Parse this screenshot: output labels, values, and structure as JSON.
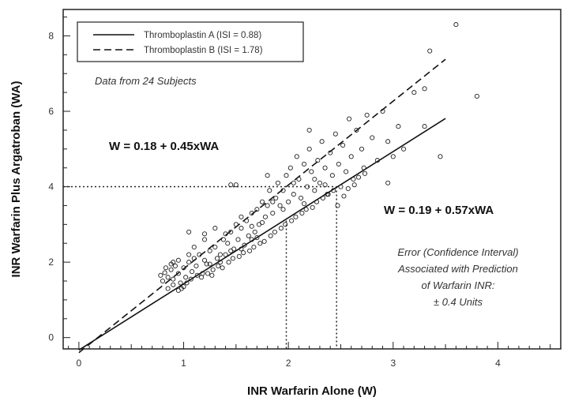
{
  "chart_data": {
    "type": "scatter",
    "xlabel": "INR Warfarin Alone (W)",
    "ylabel": "INR Warfarin Plus Argatroban (WA)",
    "xlim": [
      -0.15,
      4.6
    ],
    "ylim": [
      -0.3,
      8.7
    ],
    "xticks": [
      "0",
      "1",
      "2",
      "3",
      "4"
    ],
    "yticks": [
      "0",
      "2",
      "4",
      "6",
      "8"
    ],
    "legend": {
      "placement": "top-left",
      "entries": [
        {
          "label": "Thromboplastin A (ISI = 0.88)",
          "style": "solid"
        },
        {
          "label": "Thromboplastin B (ISI = 1.78)",
          "style": "dashed"
        }
      ]
    },
    "annotations": {
      "subjects": "Data from 24 Subjects",
      "eq_b": "W = 0.18 + 0.45xWA",
      "eq_a": "W = 0.19 + 0.57xWA",
      "error_lines": [
        "Error (Confidence Interval)",
        "Associated with Prediction",
        "of Warfarin INR:",
        "± 0.4 Units"
      ]
    },
    "series": [
      {
        "name": "Thromboplastin A (ISI = 0.88)",
        "style": "solid",
        "x": [
          0.0,
          3.5
        ],
        "y": [
          -0.33,
          5.81
        ]
      },
      {
        "name": "Thromboplastin B (ISI = 1.78)",
        "style": "dashed",
        "x": [
          0.0,
          3.5
        ],
        "y": [
          -0.4,
          7.38
        ]
      }
    ],
    "reference_lines": {
      "y": 4,
      "x": [
        1.98,
        2.46
      ]
    },
    "points": [
      [
        0.78,
        1.65
      ],
      [
        0.8,
        1.5
      ],
      [
        0.82,
        1.72
      ],
      [
        0.85,
        1.6
      ],
      [
        0.88,
        1.8
      ],
      [
        0.9,
        1.55
      ],
      [
        0.92,
        1.9
      ],
      [
        0.95,
        1.7
      ],
      [
        0.97,
        1.45
      ],
      [
        1.0,
        1.85
      ],
      [
        1.02,
        1.6
      ],
      [
        1.05,
        2.0
      ],
      [
        1.08,
        1.75
      ],
      [
        1.1,
        2.1
      ],
      [
        1.12,
        1.9
      ],
      [
        1.15,
        2.2
      ],
      [
        1.18,
        1.7
      ],
      [
        1.2,
        2.05
      ],
      [
        1.22,
        1.95
      ],
      [
        1.25,
        2.3
      ],
      [
        1.28,
        1.8
      ],
      [
        1.3,
        2.4
      ],
      [
        1.32,
        2.1
      ],
      [
        1.35,
        2.0
      ],
      [
        1.38,
        2.6
      ],
      [
        1.4,
        2.2
      ],
      [
        1.42,
        2.5
      ],
      [
        1.45,
        2.8
      ],
      [
        1.48,
        2.35
      ],
      [
        1.5,
        3.0
      ],
      [
        1.52,
        2.6
      ],
      [
        1.55,
        2.9
      ],
      [
        1.58,
        2.45
      ],
      [
        1.6,
        3.1
      ],
      [
        1.62,
        2.7
      ],
      [
        1.65,
        3.3
      ],
      [
        1.68,
        2.8
      ],
      [
        1.7,
        3.4
      ],
      [
        1.72,
        3.0
      ],
      [
        1.75,
        3.6
      ],
      [
        1.78,
        3.2
      ],
      [
        1.8,
        3.5
      ],
      [
        1.82,
        3.9
      ],
      [
        1.85,
        3.3
      ],
      [
        1.88,
        3.7
      ],
      [
        1.9,
        4.1
      ],
      [
        1.92,
        3.5
      ],
      [
        1.95,
        3.9
      ],
      [
        1.98,
        4.3
      ],
      [
        2.0,
        3.6
      ],
      [
        2.02,
        4.5
      ],
      [
        2.05,
        3.8
      ],
      [
        2.08,
        4.8
      ],
      [
        2.1,
        4.2
      ],
      [
        2.12,
        3.7
      ],
      [
        2.15,
        4.6
      ],
      [
        2.18,
        4.0
      ],
      [
        2.2,
        5.0
      ],
      [
        2.22,
        4.4
      ],
      [
        2.25,
        3.9
      ],
      [
        2.28,
        4.7
      ],
      [
        2.3,
        4.1
      ],
      [
        2.32,
        5.2
      ],
      [
        2.35,
        4.5
      ],
      [
        2.38,
        3.8
      ],
      [
        2.4,
        4.9
      ],
      [
        2.42,
        4.3
      ],
      [
        2.45,
        5.4
      ],
      [
        2.48,
        4.6
      ],
      [
        2.5,
        4.0
      ],
      [
        2.52,
        5.1
      ],
      [
        2.55,
        4.4
      ],
      [
        2.58,
        5.8
      ],
      [
        2.6,
        4.8
      ],
      [
        2.62,
        4.2
      ],
      [
        2.65,
        5.5
      ],
      [
        2.7,
        5.0
      ],
      [
        2.72,
        4.5
      ],
      [
        2.75,
        5.9
      ],
      [
        2.8,
        5.3
      ],
      [
        2.85,
        4.7
      ],
      [
        2.9,
        6.0
      ],
      [
        2.95,
        5.2
      ],
      [
        3.0,
        4.8
      ],
      [
        3.05,
        5.6
      ],
      [
        3.1,
        5.0
      ],
      [
        3.2,
        6.5
      ],
      [
        3.3,
        5.6
      ],
      [
        3.35,
        7.6
      ],
      [
        3.45,
        4.8
      ],
      [
        3.6,
        8.3
      ],
      [
        3.8,
        6.4
      ],
      [
        3.3,
        6.6
      ],
      [
        2.95,
        4.1
      ],
      [
        2.2,
        5.5
      ],
      [
        1.45,
        4.05
      ],
      [
        1.5,
        4.05
      ],
      [
        1.8,
        4.3
      ],
      [
        0.98,
        1.3
      ],
      [
        1.0,
        1.35
      ],
      [
        0.9,
        1.4
      ],
      [
        0.85,
        1.3
      ],
      [
        0.95,
        1.25
      ],
      [
        1.03,
        1.45
      ],
      [
        1.07,
        1.55
      ],
      [
        1.13,
        1.65
      ],
      [
        1.17,
        1.6
      ],
      [
        1.23,
        1.7
      ],
      [
        1.27,
        1.65
      ],
      [
        1.33,
        1.9
      ],
      [
        1.37,
        1.85
      ],
      [
        1.43,
        2.0
      ],
      [
        1.47,
        2.1
      ],
      [
        1.53,
        2.15
      ],
      [
        1.57,
        2.25
      ],
      [
        1.63,
        2.3
      ],
      [
        1.67,
        2.4
      ],
      [
        1.73,
        2.5
      ],
      [
        1.77,
        2.55
      ],
      [
        1.83,
        2.7
      ],
      [
        1.87,
        2.8
      ],
      [
        1.93,
        2.9
      ],
      [
        1.97,
        3.0
      ],
      [
        2.03,
        3.1
      ],
      [
        2.07,
        3.2
      ],
      [
        2.13,
        3.3
      ],
      [
        2.17,
        3.4
      ],
      [
        2.23,
        3.45
      ],
      [
        2.27,
        3.6
      ],
      [
        2.33,
        3.7
      ],
      [
        2.37,
        3.8
      ],
      [
        2.43,
        3.9
      ],
      [
        2.47,
        3.5
      ],
      [
        2.53,
        3.75
      ],
      [
        2.57,
        3.95
      ],
      [
        2.63,
        4.05
      ],
      [
        2.67,
        4.25
      ],
      [
        2.73,
        4.35
      ],
      [
        1.2,
        2.6
      ],
      [
        1.3,
        2.9
      ],
      [
        1.4,
        2.75
      ],
      [
        1.55,
        3.2
      ],
      [
        1.65,
        2.95
      ],
      [
        1.75,
        3.05
      ],
      [
        1.85,
        3.6
      ],
      [
        1.95,
        3.4
      ],
      [
        2.05,
        4.1
      ],
      [
        2.15,
        3.55
      ],
      [
        2.25,
        4.2
      ],
      [
        2.35,
        4.05
      ],
      [
        1.1,
        2.4
      ],
      [
        1.05,
        2.2
      ],
      [
        0.95,
        2.05
      ],
      [
        0.9,
        2.0
      ],
      [
        0.88,
        1.95
      ],
      [
        0.83,
        1.85
      ],
      [
        1.25,
        1.95
      ],
      [
        1.35,
        2.2
      ],
      [
        1.45,
        2.3
      ],
      [
        1.55,
        2.35
      ],
      [
        1.65,
        2.6
      ],
      [
        1.7,
        2.65
      ],
      [
        1.05,
        2.8
      ],
      [
        1.2,
        2.75
      ]
    ]
  }
}
